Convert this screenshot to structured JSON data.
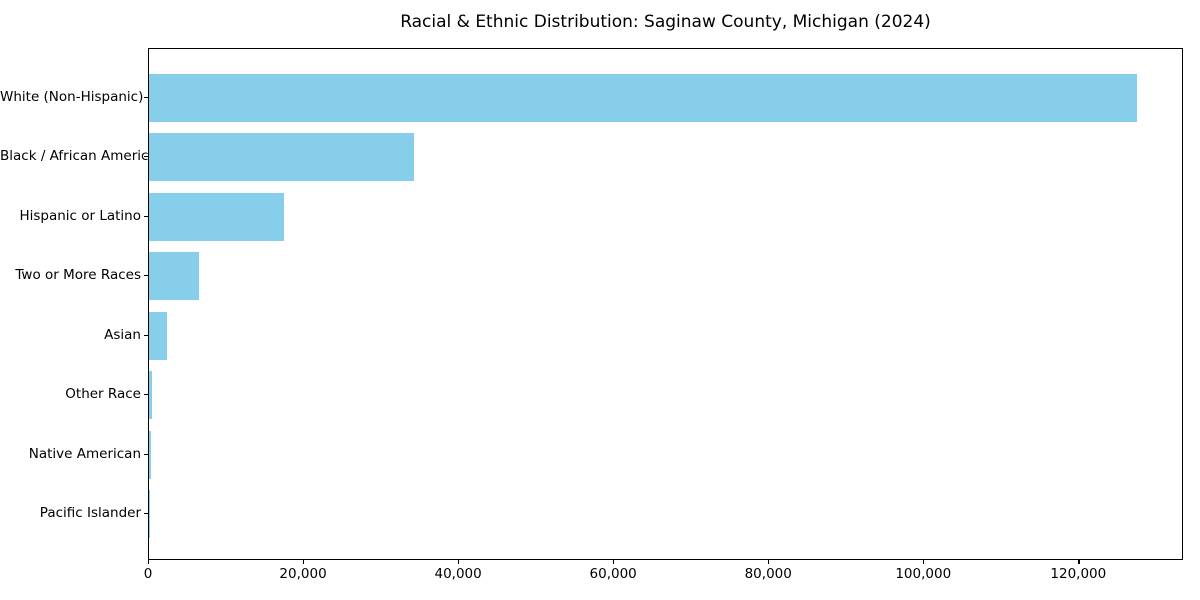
{
  "chart_data": {
    "type": "bar",
    "orientation": "horizontal",
    "title": "Racial & Ethnic Distribution: Saginaw County, Michigan (2024)",
    "categories": [
      "White (Non-Hispanic)",
      "Black / African American",
      "Hispanic or Latino",
      "Two or More Races",
      "Asian",
      "Other Race",
      "Native American",
      "Pacific Islander"
    ],
    "values": [
      127400,
      34200,
      17400,
      6450,
      2300,
      450,
      200,
      40
    ],
    "xlabel": "",
    "ylabel": "",
    "xlim": [
      0,
      133500
    ],
    "x_ticks": [
      0,
      20000,
      40000,
      60000,
      80000,
      100000,
      120000
    ],
    "x_tick_labels": [
      "0",
      "20,000",
      "40,000",
      "60,000",
      "80,000",
      "100,000",
      "120,000"
    ],
    "bar_color": "#87CEEB",
    "grid": false,
    "legend_position": "none",
    "background_color": "#FFFFFF"
  }
}
